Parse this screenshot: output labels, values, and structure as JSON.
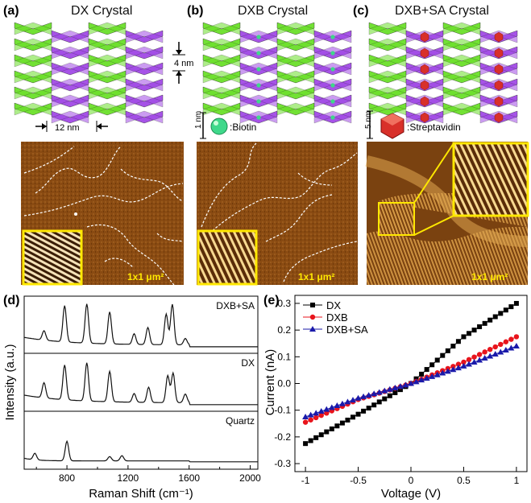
{
  "panels": {
    "a": {
      "label": "(a)",
      "title": "DX Crystal",
      "dim_vertical": "4 nm",
      "dim_horizontal": "12 nm",
      "scale": "1x1 μm²"
    },
    "b": {
      "label": "(b)",
      "title": "DXB Crystal",
      "legend_scale": "1 nm",
      "legend_text": ":Biotin",
      "scale": "1x1 μm²"
    },
    "c": {
      "label": "(c)",
      "title": "DXB+SA Crystal",
      "legend_scale": "5 nm",
      "legend_text": ":Streptavidin",
      "scale": "1x1 μm²"
    },
    "d": {
      "label": "(d)"
    },
    "e": {
      "label": "(e)"
    }
  },
  "colors": {
    "green": "#6be02a",
    "purple": "#a24ae6",
    "biotin": "#3fd88a",
    "streptavidin": "#d8302a",
    "yellow": "#ffe800"
  },
  "chart_data": [
    {
      "type": "line",
      "title": "",
      "xlabel": "Raman Shift (cm⁻¹)",
      "ylabel": "Intensity (a.u.)",
      "xlim": [
        520,
        2050
      ],
      "xticks": [
        800,
        1200,
        1600,
        2000
      ],
      "series": [
        {
          "name": "DXB+SA",
          "peaks": [
            [
              650,
              0.22
            ],
            [
              785,
              0.85
            ],
            [
              930,
              0.92
            ],
            [
              1080,
              0.75
            ],
            [
              1240,
              0.25
            ],
            [
              1330,
              0.4
            ],
            [
              1450,
              0.72
            ],
            [
              1490,
              0.95
            ],
            [
              1575,
              0.15
            ]
          ]
        },
        {
          "name": "DX",
          "peaks": [
            [
              650,
              0.35
            ],
            [
              785,
              0.8
            ],
            [
              930,
              0.88
            ],
            [
              1080,
              0.7
            ],
            [
              1240,
              0.2
            ],
            [
              1335,
              0.35
            ],
            [
              1460,
              0.62
            ],
            [
              1495,
              0.68
            ],
            [
              1575,
              0.2
            ]
          ]
        },
        {
          "name": "Quartz",
          "peaks": [
            [
              590,
              0.15
            ],
            [
              800,
              0.45
            ],
            [
              1080,
              0.1
            ],
            [
              1160,
              0.12
            ]
          ]
        }
      ]
    },
    {
      "type": "line",
      "title": "",
      "xlabel": "Voltage (V)",
      "ylabel": "Current (nA)",
      "xlim": [
        -1.1,
        1.1
      ],
      "ylim": [
        -0.3,
        0.3
      ],
      "xticks": [
        "-1",
        "-0.5",
        "0",
        "0.5",
        "1"
      ],
      "yticks": [
        "-0.3",
        "-0.2",
        "-0.1",
        "0.0",
        "0.1",
        "0.2",
        "0.3"
      ],
      "series": [
        {
          "name": "DX",
          "marker": "square",
          "color": "#000000",
          "x": [
            -1.0,
            -0.5,
            0.0,
            0.5,
            1.0
          ],
          "y": [
            -0.225,
            -0.115,
            0.0,
            0.175,
            0.3
          ]
        },
        {
          "name": "DXB",
          "marker": "circle",
          "color": "#e8141c",
          "x": [
            -1.0,
            -0.5,
            0.0,
            0.5,
            1.0
          ],
          "y": [
            -0.145,
            -0.06,
            0.0,
            0.08,
            0.175
          ]
        },
        {
          "name": "DXB+SA",
          "marker": "triangle",
          "color": "#1a1aaa",
          "x": [
            -1.0,
            -0.5,
            0.0,
            0.5,
            1.0
          ],
          "y": [
            -0.125,
            -0.055,
            0.0,
            0.065,
            0.14
          ]
        }
      ]
    }
  ]
}
